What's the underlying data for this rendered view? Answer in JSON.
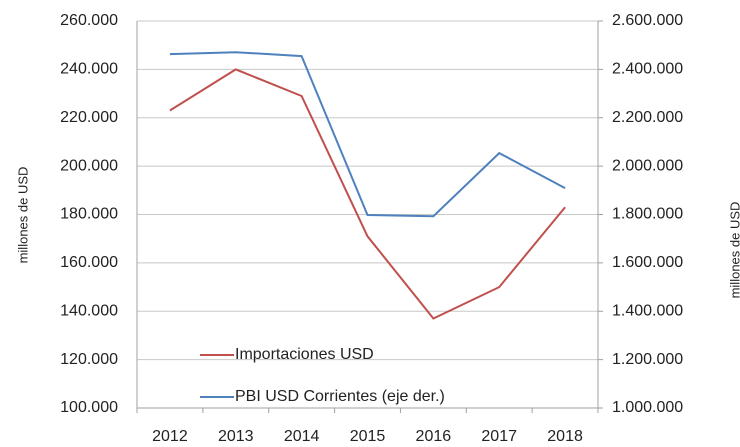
{
  "chart_data": {
    "type": "line",
    "categories": [
      "2012",
      "2013",
      "2014",
      "2015",
      "2016",
      "2017",
      "2018"
    ],
    "series": [
      {
        "name": "Importaciones USD",
        "color": "#c0504d",
        "values": [
          223000,
          240000,
          229000,
          171000,
          137000,
          150000,
          183000
        ]
      },
      {
        "name": "PBI USD Corrientes (eje der.)",
        "color": "#4f81bd",
        "axis": "y2",
        "values": [
          2463000,
          2471000,
          2455000,
          1798000,
          1793000,
          2054000,
          1909000
        ]
      }
    ],
    "ylabel": "millones de USD",
    "y2label": "millones de USD",
    "ylim": [
      100000,
      260000
    ],
    "yticks": [
      {
        "value": 100000,
        "label": "100.000"
      },
      {
        "value": 120000,
        "label": "120.000"
      },
      {
        "value": 140000,
        "label": "140.000"
      },
      {
        "value": 160000,
        "label": "160.000"
      },
      {
        "value": 180000,
        "label": "180.000"
      },
      {
        "value": 200000,
        "label": "200.000"
      },
      {
        "value": 220000,
        "label": "220.000"
      },
      {
        "value": 240000,
        "label": "240.000"
      },
      {
        "value": 260000,
        "label": "260.000"
      }
    ],
    "y2lim": [
      1000000,
      2600000
    ],
    "y2ticks": [
      {
        "value": 1000000,
        "label": "1.000.000"
      },
      {
        "value": 1200000,
        "label": "1.200.000"
      },
      {
        "value": 1400000,
        "label": "1.400.000"
      },
      {
        "value": 1600000,
        "label": "1.600.000"
      },
      {
        "value": 1800000,
        "label": "1.800.000"
      },
      {
        "value": 2000000,
        "label": "2.000.000"
      },
      {
        "value": 2200000,
        "label": "2.200.000"
      },
      {
        "value": 2400000,
        "label": "2.400.000"
      },
      {
        "value": 2600000,
        "label": "2.600.000"
      }
    ],
    "grid": true,
    "legend": "lower left"
  }
}
